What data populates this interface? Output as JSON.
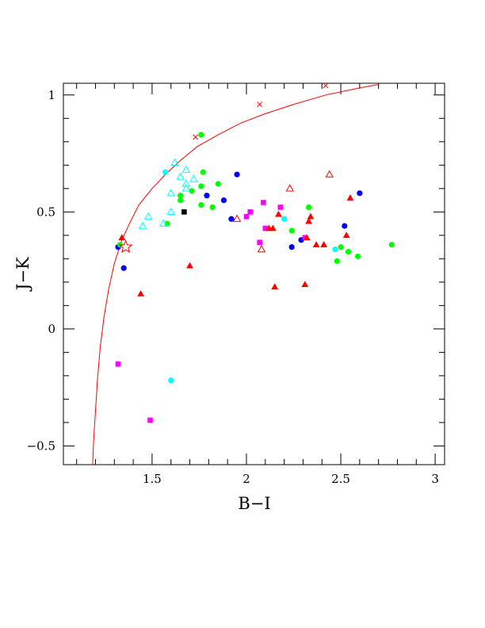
{
  "chart_data": {
    "type": "scatter",
    "title": "",
    "xlabel": "B−I",
    "ylabel": "J−K",
    "xlim": [
      1.03,
      3.05
    ],
    "ylim": [
      -0.58,
      1.05
    ],
    "x_ticks": [
      {
        "value": 1.5,
        "label": "1.5"
      },
      {
        "value": 2.0,
        "label": "2"
      },
      {
        "value": 2.5,
        "label": "2.5"
      },
      {
        "value": 3.0,
        "label": "3"
      }
    ],
    "y_ticks": [
      {
        "value": -0.5,
        "label": "−0.5"
      },
      {
        "value": 0.0,
        "label": "0"
      },
      {
        "value": 0.5,
        "label": "0.5"
      },
      {
        "value": 1.0,
        "label": "1"
      }
    ],
    "x_minor_step": 0.1,
    "y_minor_step": 0.1,
    "grid": false,
    "colors": {
      "blue": "#0000ff",
      "green": "#00ff00",
      "cyan": "#00ffff",
      "magenta": "#ff00ff",
      "red": "#ff0000",
      "black": "#000000",
      "curve": "#ff0000"
    },
    "curve": {
      "color": "red",
      "points": [
        [
          1.185,
          -0.58
        ],
        [
          1.19,
          -0.48
        ],
        [
          1.2,
          -0.35
        ],
        [
          1.21,
          -0.22
        ],
        [
          1.225,
          -0.08
        ],
        [
          1.245,
          0.05
        ],
        [
          1.27,
          0.17
        ],
        [
          1.3,
          0.28
        ],
        [
          1.34,
          0.38
        ],
        [
          1.38,
          0.45
        ],
        [
          1.43,
          0.53
        ],
        [
          1.5,
          0.6
        ],
        [
          1.57,
          0.66
        ],
        [
          1.65,
          0.72
        ],
        [
          1.74,
          0.78
        ],
        [
          1.85,
          0.83
        ],
        [
          1.97,
          0.88
        ],
        [
          2.1,
          0.92
        ],
        [
          2.25,
          0.96
        ],
        [
          2.42,
          1.0
        ],
        [
          2.6,
          1.03
        ],
        [
          2.7,
          1.045
        ]
      ],
      "markers": [
        [
          1.73,
          0.82
        ],
        [
          2.07,
          0.96
        ],
        [
          2.42,
          1.04
        ]
      ]
    },
    "series": [
      {
        "marker": "filled-circle",
        "color": "blue",
        "points": [
          [
            1.32,
            0.35
          ],
          [
            1.35,
            0.26
          ],
          [
            1.79,
            0.57
          ],
          [
            1.88,
            0.55
          ],
          [
            1.92,
            0.47
          ],
          [
            1.95,
            0.66
          ],
          [
            2.24,
            0.35
          ],
          [
            2.29,
            0.38
          ],
          [
            2.52,
            0.44
          ],
          [
            2.6,
            0.58
          ]
        ]
      },
      {
        "marker": "filled-circle",
        "color": "green",
        "points": [
          [
            1.33,
            0.36
          ],
          [
            1.58,
            0.45
          ],
          [
            1.65,
            0.57
          ],
          [
            1.65,
            0.55
          ],
          [
            1.71,
            0.59
          ],
          [
            1.76,
            0.53
          ],
          [
            1.76,
            0.61
          ],
          [
            1.77,
            0.67
          ],
          [
            1.82,
            0.52
          ],
          [
            1.85,
            0.62
          ],
          [
            1.76,
            0.83
          ],
          [
            2.24,
            0.42
          ],
          [
            2.33,
            0.52
          ],
          [
            2.48,
            0.29
          ],
          [
            2.5,
            0.35
          ],
          [
            2.54,
            0.33
          ],
          [
            2.59,
            0.31
          ],
          [
            2.77,
            0.36
          ]
        ]
      },
      {
        "marker": "filled-circle",
        "color": "cyan",
        "points": [
          [
            1.57,
            0.67
          ],
          [
            1.6,
            -0.22
          ],
          [
            2.2,
            0.47
          ],
          [
            2.47,
            0.34
          ]
        ]
      },
      {
        "marker": "open-triangle",
        "color": "cyan",
        "points": [
          [
            1.45,
            0.44
          ],
          [
            1.48,
            0.48
          ],
          [
            1.56,
            0.45
          ],
          [
            1.6,
            0.58
          ],
          [
            1.6,
            0.5
          ],
          [
            1.62,
            0.71
          ],
          [
            1.65,
            0.65
          ],
          [
            1.68,
            0.68
          ],
          [
            1.68,
            0.62
          ],
          [
            1.68,
            0.6
          ],
          [
            1.72,
            0.64
          ]
        ]
      },
      {
        "marker": "filled-square",
        "color": "magenta",
        "points": [
          [
            1.32,
            -0.15
          ],
          [
            1.49,
            -0.39
          ],
          [
            2.0,
            0.48
          ],
          [
            2.02,
            0.5
          ],
          [
            2.07,
            0.37
          ],
          [
            2.09,
            0.54
          ],
          [
            2.1,
            0.43
          ],
          [
            2.18,
            0.52
          ],
          [
            2.31,
            0.39
          ]
        ]
      },
      {
        "marker": "filled-triangle",
        "color": "red",
        "points": [
          [
            1.34,
            0.39
          ],
          [
            1.44,
            0.15
          ],
          [
            1.7,
            0.27
          ],
          [
            2.12,
            0.43
          ],
          [
            2.14,
            0.43
          ],
          [
            2.15,
            0.18
          ],
          [
            2.17,
            0.49
          ],
          [
            2.31,
            0.19
          ],
          [
            2.32,
            0.39
          ],
          [
            2.33,
            0.46
          ],
          [
            2.34,
            0.48
          ],
          [
            2.37,
            0.36
          ],
          [
            2.41,
            0.36
          ],
          [
            2.53,
            0.4
          ],
          [
            2.55,
            0.56
          ]
        ]
      },
      {
        "marker": "open-triangle",
        "color": "red",
        "points": [
          [
            1.95,
            0.47
          ],
          [
            2.08,
            0.34
          ],
          [
            2.23,
            0.6
          ],
          [
            2.44,
            0.66
          ]
        ]
      },
      {
        "marker": "filled-square",
        "color": "black",
        "points": [
          [
            1.67,
            0.5
          ]
        ]
      },
      {
        "marker": "open-star",
        "color": "red",
        "points": [
          [
            1.36,
            0.35
          ]
        ]
      }
    ]
  }
}
